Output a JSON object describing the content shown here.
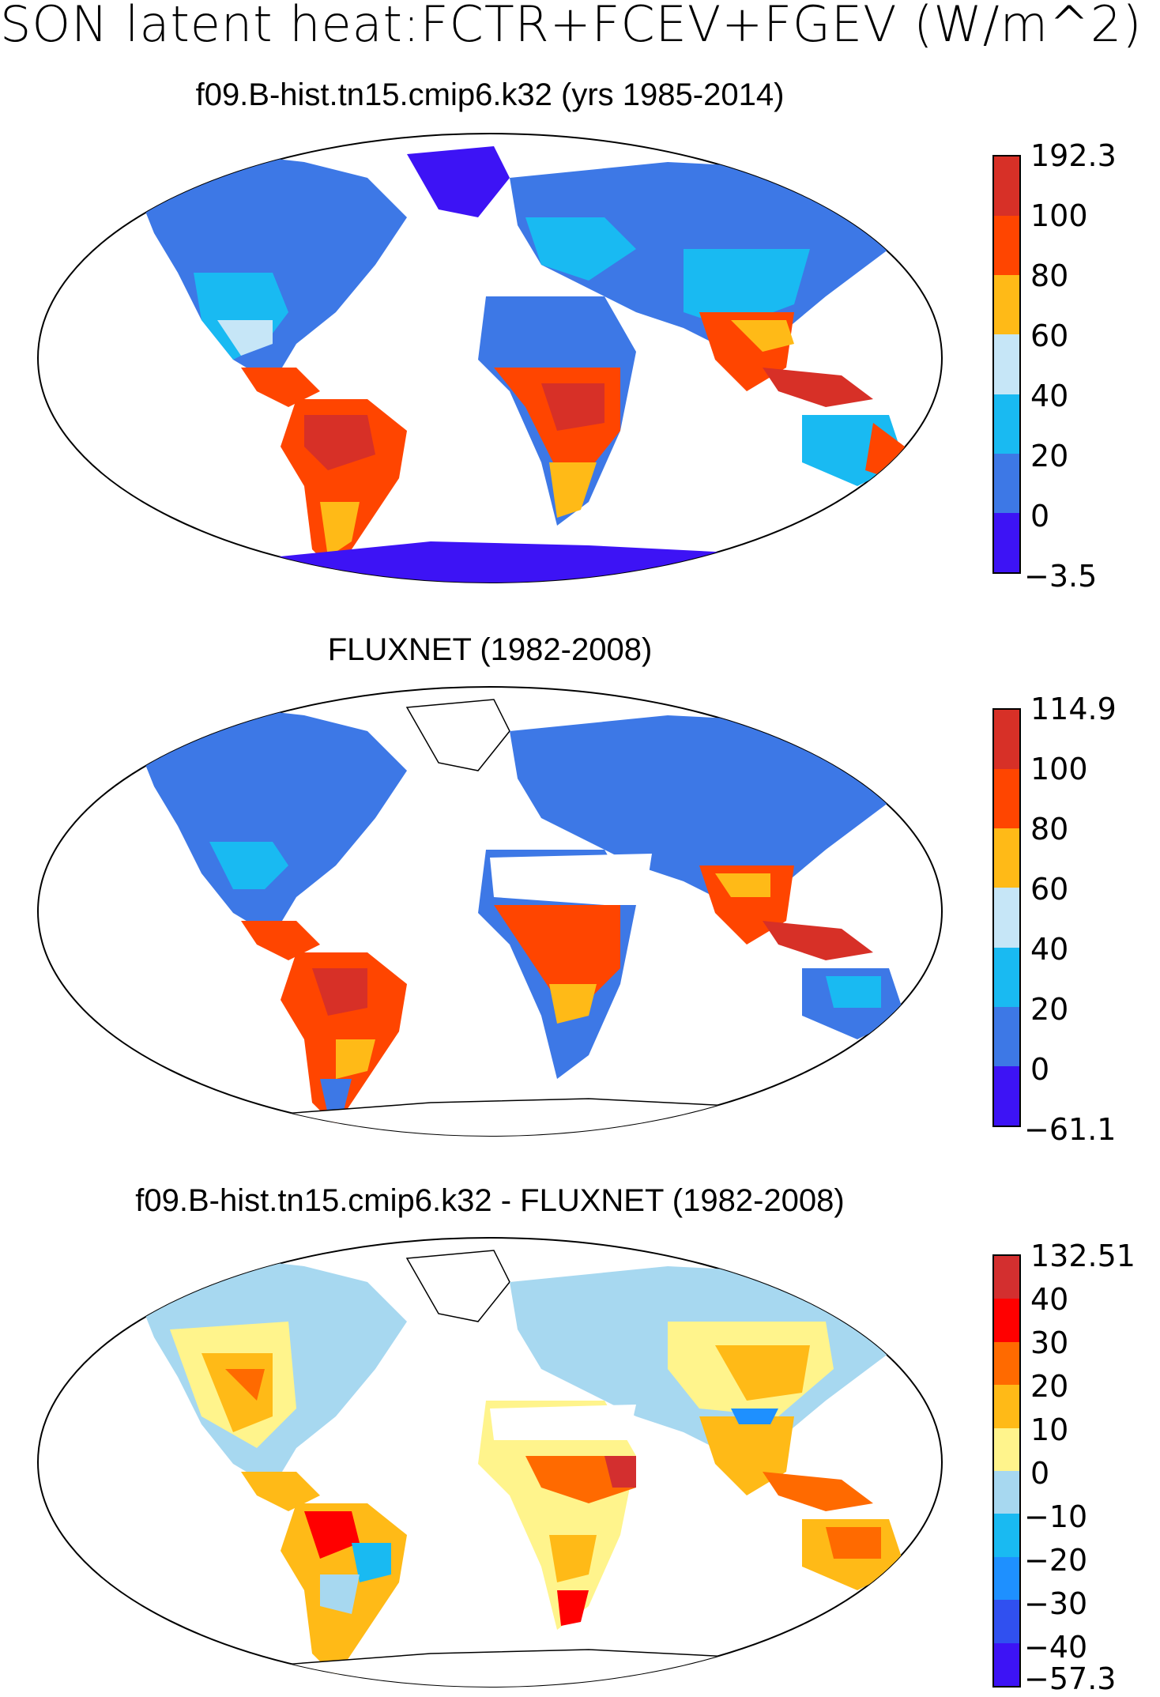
{
  "title": "SON latent heat:FCTR+FCEV+FGEV (W/m^2)",
  "panels": [
    {
      "title": "f09.B-hist.tn15.cmip6.k32 (yrs 1985-2014)",
      "colorbar": {
        "labels": [
          "192.3",
          "100",
          "80",
          "60",
          "40",
          "20",
          "0",
          "−3.5"
        ],
        "colors": [
          "#d73027",
          "#ff4500",
          "#ffba17",
          "#c6e6f7",
          "#19baf2",
          "#3d78e6",
          "#3d13f5"
        ]
      }
    },
    {
      "title": "FLUXNET (1982-2008)",
      "colorbar": {
        "labels": [
          "114.9",
          "100",
          "80",
          "60",
          "40",
          "20",
          "0",
          "−61.1"
        ],
        "colors": [
          "#d73027",
          "#ff4500",
          "#ffba17",
          "#c6e6f7",
          "#19baf2",
          "#3d78e6",
          "#3d13f5"
        ]
      }
    },
    {
      "title": "f09.B-hist.tn15.cmip6.k32 - FLUXNET (1982-2008)",
      "colorbar": {
        "labels": [
          "132.51",
          "40",
          "30",
          "20",
          "10",
          "0",
          "−10",
          "−20",
          "−30",
          "−40",
          "−57.3"
        ],
        "colors": [
          "#d32f2f",
          "#ff0000",
          "#ff6a00",
          "#ffba17",
          "#fff48c",
          "#a7d8f0",
          "#19baf2",
          "#1e90ff",
          "#3050f0",
          "#3d13f5"
        ]
      }
    }
  ]
}
